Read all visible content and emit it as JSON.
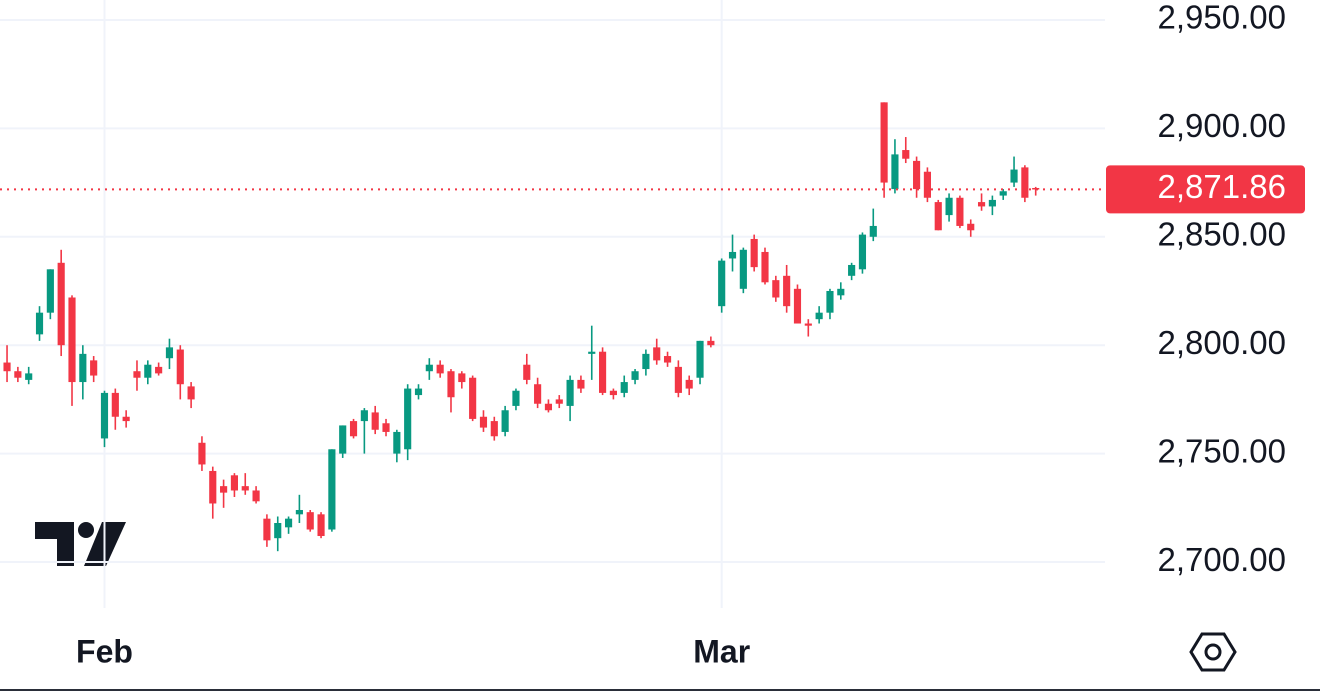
{
  "chart_data": {
    "type": "candlestick",
    "open": [
      2792,
      2788,
      2784,
      2805,
      2815,
      2838,
      2822,
      2783,
      2793,
      2757,
      2778,
      2767,
      2788,
      2785,
      2790,
      2794,
      2798,
      2781,
      2755,
      2742,
      2735,
      2740,
      2735,
      2733,
      2720,
      2711,
      2716,
      2722,
      2723,
      2722,
      2715,
      2750,
      2765,
      2765,
      2769,
      2764,
      2750,
      2752,
      2777,
      2788,
      2791,
      2788,
      2787,
      2785,
      2767,
      2765,
      2760,
      2772,
      2791,
      2782,
      2773,
      2775,
      2772,
      2784,
      2796,
      2797,
      2779,
      2778,
      2784,
      2789,
      2799,
      2795,
      2790,
      2784,
      2785,
      2802,
      2818,
      2840,
      2826,
      2849,
      2843,
      2830,
      2832,
      2826,
      2810,
      2812,
      2815,
      2823,
      2832,
      2835,
      2850,
      2912,
      2872,
      2890,
      2885,
      2880,
      2866,
      2860,
      2868,
      2856,
      2866,
      2864,
      2869,
      2875,
      2882,
      2872.5
    ],
    "high": [
      2800,
      2790,
      2790,
      2818,
      2835,
      2844,
      2823,
      2800,
      2795,
      2779,
      2780,
      2770,
      2793,
      2793,
      2792,
      2803,
      2800,
      2783,
      2758,
      2744,
      2738,
      2741,
      2741,
      2735,
      2722,
      2721,
      2721,
      2731,
      2724,
      2723,
      2752,
      2763,
      2766,
      2771,
      2772,
      2766,
      2761,
      2782,
      2782,
      2794,
      2793,
      2789,
      2788,
      2786,
      2770,
      2767,
      2772,
      2780,
      2796,
      2785,
      2775,
      2777,
      2786,
      2786,
      2809,
      2799,
      2780,
      2786,
      2789,
      2798,
      2803,
      2797,
      2793,
      2786,
      2802,
      2804,
      2840,
      2851,
      2845,
      2851,
      2845,
      2832,
      2837,
      2828,
      2812,
      2818,
      2826,
      2829,
      2838,
      2852,
      2863,
      2912,
      2895,
      2896,
      2887,
      2882,
      2867,
      2870,
      2869,
      2858,
      2870,
      2869,
      2872,
      2887,
      2883,
      2873
    ],
    "low": [
      2783,
      2783,
      2782,
      2802,
      2812,
      2795,
      2772,
      2775,
      2783,
      2753,
      2761,
      2762,
      2779,
      2782,
      2786,
      2789,
      2775,
      2771,
      2742,
      2720,
      2725,
      2730,
      2731,
      2727,
      2707,
      2705,
      2713,
      2718,
      2714,
      2711,
      2714,
      2748,
      2757,
      2750,
      2759,
      2758,
      2746,
      2747,
      2775,
      2784,
      2785,
      2769,
      2780,
      2765,
      2760,
      2756,
      2758,
      2770,
      2782,
      2771,
      2769,
      2771,
      2765,
      2778,
      2784,
      2777,
      2775,
      2776,
      2782,
      2786,
      2791,
      2790,
      2776,
      2777,
      2782,
      2799,
      2815,
      2834,
      2824,
      2834,
      2828,
      2820,
      2815,
      2810,
      2804,
      2810,
      2812,
      2821,
      2830,
      2833,
      2848,
      2868,
      2870,
      2884,
      2868,
      2866,
      2853,
      2857,
      2854,
      2850,
      2862,
      2860,
      2867,
      2873,
      2866,
      2869
    ],
    "close": [
      2788,
      2785,
      2787,
      2815,
      2835,
      2800,
      2783,
      2796,
      2786,
      2778,
      2767,
      2765,
      2785,
      2791,
      2787,
      2799,
      2782,
      2775,
      2745,
      2727,
      2732,
      2733,
      2733,
      2728,
      2710,
      2718,
      2720,
      2724,
      2715,
      2712,
      2752,
      2763,
      2758,
      2770,
      2761,
      2760,
      2760,
      2780,
      2780,
      2791,
      2787,
      2776,
      2783,
      2766,
      2762,
      2758,
      2770,
      2779,
      2784,
      2773,
      2770,
      2773,
      2784,
      2780,
      2797,
      2778,
      2777,
      2783,
      2788,
      2796,
      2793,
      2792,
      2778,
      2780,
      2802,
      2800,
      2839,
      2843,
      2844,
      2836,
      2829,
      2822,
      2818,
      2810,
      2809,
      2815,
      2825,
      2826,
      2837,
      2851,
      2855,
      2875,
      2888,
      2886,
      2872,
      2868,
      2853,
      2868,
      2855,
      2853,
      2864,
      2867,
      2871,
      2881,
      2868,
      2871.86
    ],
    "up_color": "#089981",
    "down_color": "#f23645",
    "xlim": [
      -0.65,
      101.4
    ],
    "xticks": [
      {
        "value": 9,
        "label": "Feb"
      },
      {
        "value": 66,
        "label": "Mar"
      }
    ],
    "ylim": [
      2678.8,
      2959.2
    ],
    "yticks": [
      {
        "value": 2700,
        "label": "2,700.00"
      },
      {
        "value": 2750,
        "label": "2,750.00"
      },
      {
        "value": 2800,
        "label": "2,800.00"
      },
      {
        "value": 2850,
        "label": "2,850.00"
      },
      {
        "value": 2900,
        "label": "2,900.00"
      },
      {
        "value": 2950,
        "label": "2,950.00"
      }
    ],
    "last_price": {
      "value": 2871.86,
      "label": "2,871.86"
    },
    "grid": true
  }
}
